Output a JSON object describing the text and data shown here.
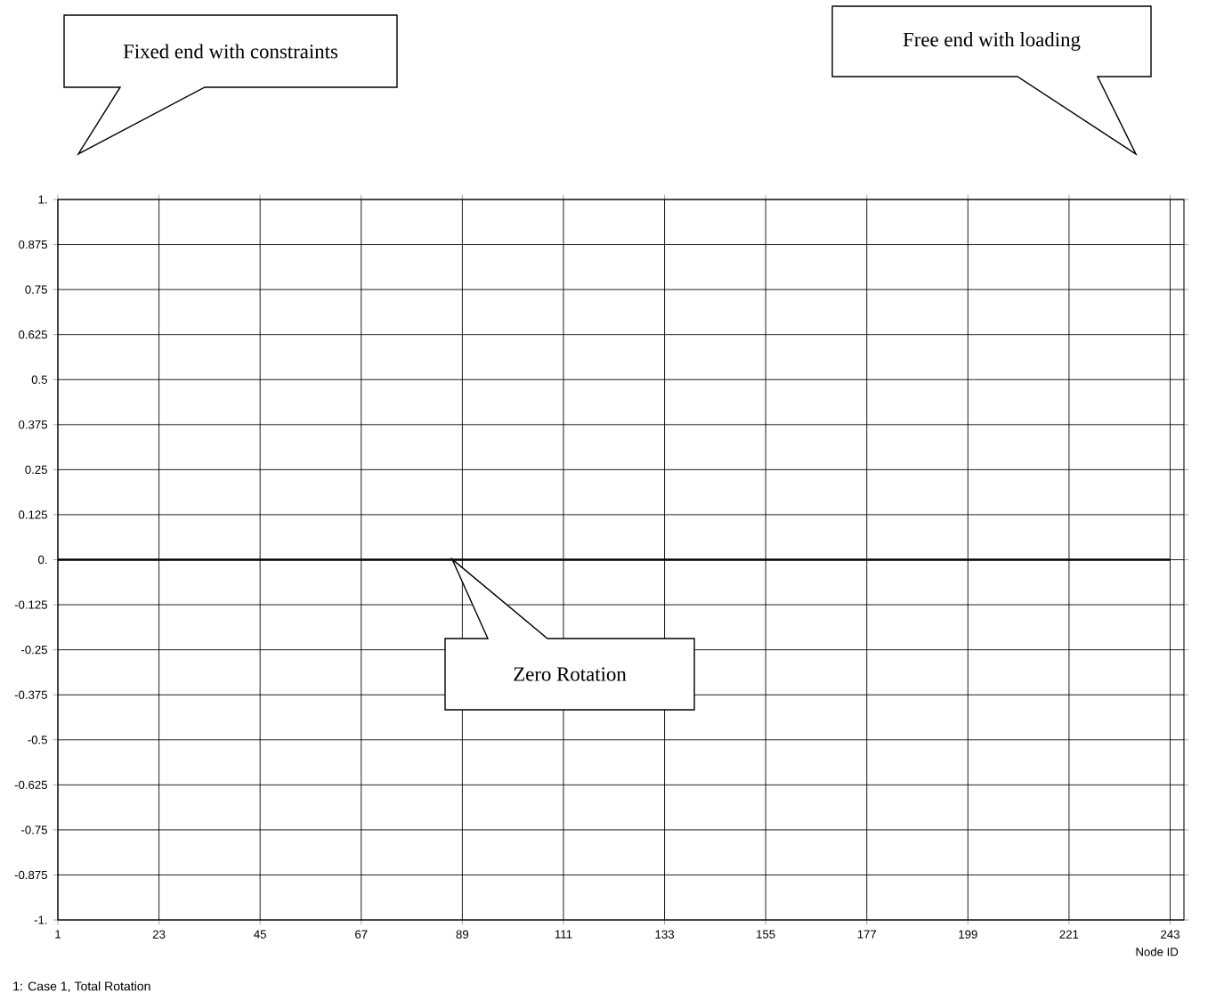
{
  "chart_data": {
    "type": "line",
    "xlabel": "Node ID",
    "x": [
      1,
      243
    ],
    "series": [
      {
        "name": "1: Case 1, Total Rotation",
        "color": "#000000",
        "values": [
          0,
          0
        ]
      }
    ],
    "xlim": [
      1,
      246
    ],
    "xticks": [
      1,
      23,
      45,
      67,
      89,
      111,
      133,
      155,
      177,
      199,
      221,
      243
    ],
    "ylim": [
      -1,
      1
    ],
    "yticks": [
      {
        "value": 1,
        "label": "1."
      },
      0.875,
      0.75,
      0.625,
      0.5,
      0.375,
      0.25,
      0.125,
      {
        "value": 0,
        "label": "0."
      },
      -0.125,
      -0.25,
      -0.375,
      -0.5,
      -0.625,
      -0.75,
      -0.875,
      {
        "value": -1,
        "label": "-1."
      }
    ],
    "grid": true,
    "marker": "none",
    "line_style": "solid",
    "annotations": [
      "Fixed end with constraints",
      "Free end with loading",
      "Zero Rotation"
    ]
  }
}
